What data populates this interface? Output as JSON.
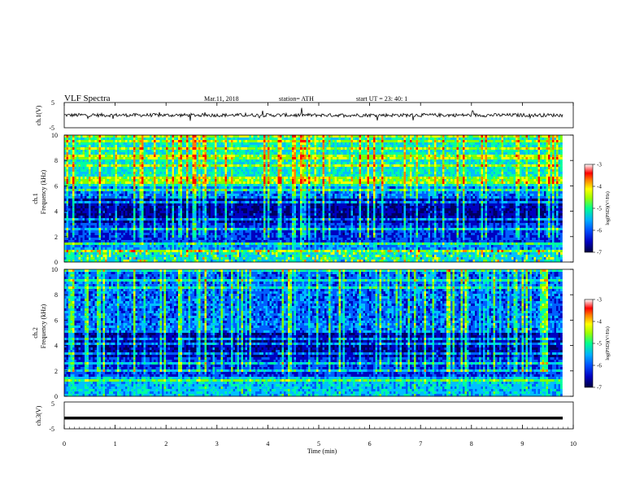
{
  "header": {
    "title": "VLF  Spectra",
    "date": "Mar.11, 2018",
    "station": "station= ATH",
    "start": "start  UT  =    23: 40: 1"
  },
  "chart_data": [
    {
      "type": "line",
      "panel": "ch1-waveform",
      "ylabel": "ch.1(V)",
      "ylim": [
        -5,
        5
      ],
      "yticks": [
        "5",
        "-5"
      ],
      "x_range_min": [
        0,
        9.8
      ],
      "baseline_level_V": 0
    },
    {
      "type": "heatmap",
      "panel": "ch1-spectrogram",
      "ylabel": "ch.1\nFrequency  (kHz)",
      "ylim": [
        0,
        10
      ],
      "yticks": [
        "0",
        "2",
        "4",
        "6",
        "8",
        "10"
      ],
      "x_range_min": [
        0,
        9.8
      ],
      "colorbar": {
        "label": "log(PSD)(V²/Hz)",
        "range": [
          -7,
          -3
        ],
        "ticks": [
          "-3",
          "-4",
          "-5",
          "-6",
          "-7"
        ]
      }
    },
    {
      "type": "heatmap",
      "panel": "ch2-spectrogram",
      "ylabel": "ch.2\nFrequency  (kHz)",
      "ylim": [
        0,
        10
      ],
      "yticks": [
        "0",
        "2",
        "4",
        "6",
        "8",
        "10"
      ],
      "x_range_min": [
        0,
        9.8
      ],
      "colorbar": {
        "label": "log(PSD)(V²/Hz)",
        "range": [
          -7,
          -3
        ],
        "ticks": [
          "-3",
          "-4",
          "-5",
          "-6",
          "-7"
        ]
      }
    },
    {
      "type": "line",
      "panel": "ch3-waveform",
      "ylabel": "ch.3(V)",
      "ylim": [
        -5,
        5
      ],
      "yticks": [
        "5",
        "-5"
      ],
      "x_range_min": [
        0,
        9.8
      ],
      "baseline_level_V": -1
    }
  ],
  "xaxis": {
    "label": "Time  (min)",
    "ticks": [
      "0",
      "1",
      "2",
      "3",
      "4",
      "5",
      "6",
      "7",
      "8",
      "9",
      "10"
    ],
    "range": [
      0,
      10
    ]
  },
  "colors": {
    "colormap": [
      "#000060",
      "#0000c0",
      "#0060ff",
      "#00c0ff",
      "#00ffa0",
      "#80ff00",
      "#ffff00",
      "#ff8000",
      "#ff0000",
      "#ffffff"
    ]
  }
}
